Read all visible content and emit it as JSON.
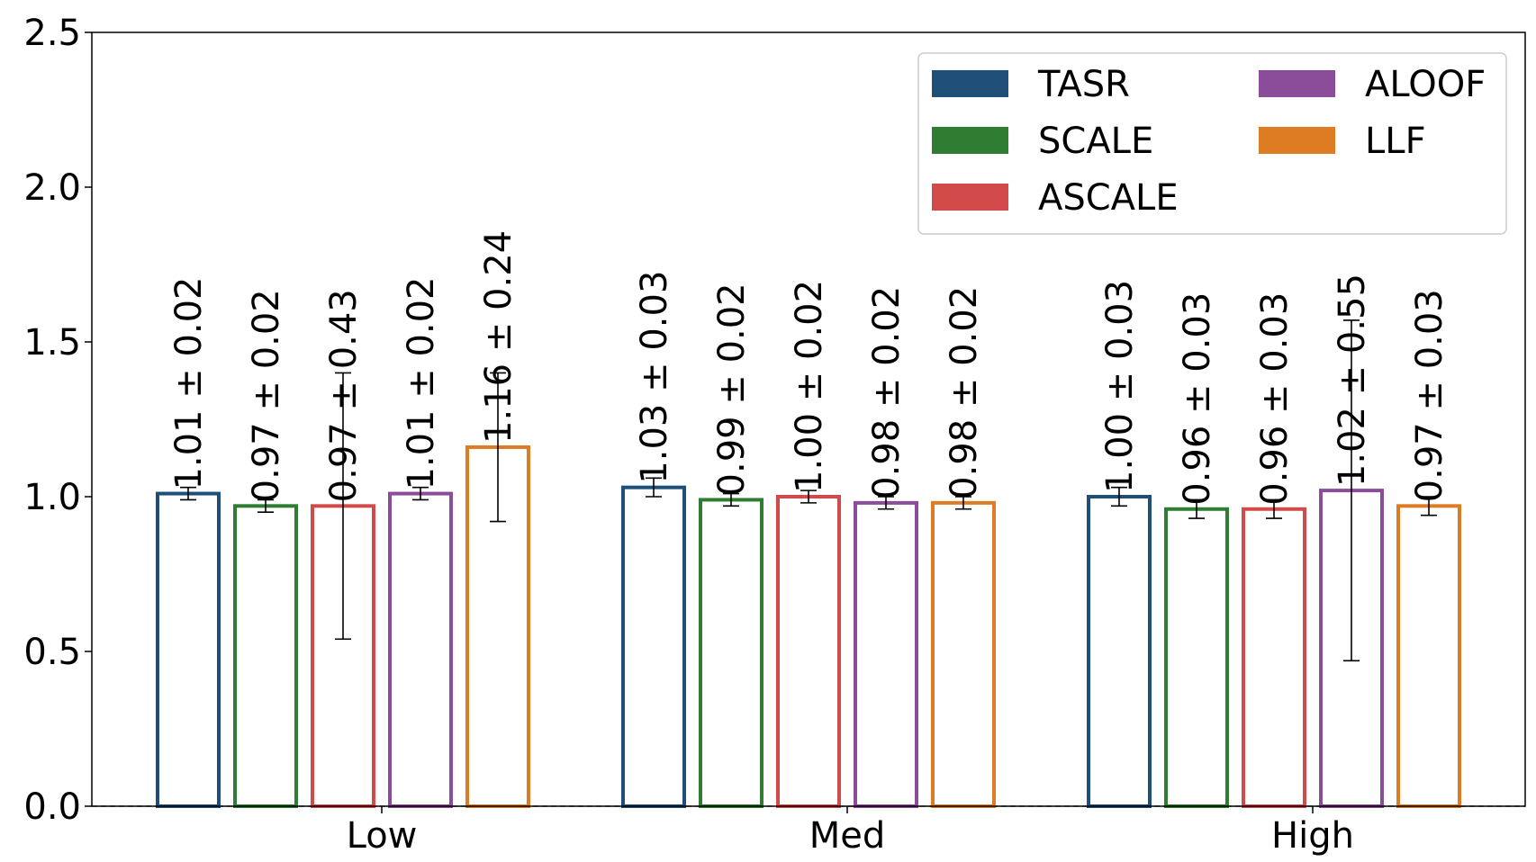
{
  "chart_data": {
    "type": "bar",
    "categories": [
      "Low",
      "Med",
      "High"
    ],
    "ylim": [
      0,
      2.5
    ],
    "yticks": [
      "0.0",
      "0.5",
      "1.0",
      "1.5",
      "2.0",
      "2.5"
    ],
    "xlabel": "",
    "ylabel": "",
    "grid": false,
    "legend_position": "top-right",
    "reference_line": 0,
    "series": [
      {
        "name": "TASR",
        "color": "#1f4e79",
        "values": [
          1.01,
          1.03,
          1.0
        ],
        "errors": [
          0.02,
          0.03,
          0.03
        ],
        "labels": [
          "1.01 ± 0.02",
          "1.03 ± 0.03",
          "1.00 ± 0.03"
        ]
      },
      {
        "name": "SCALE",
        "color": "#2e7d32",
        "values": [
          0.97,
          0.99,
          0.96
        ],
        "errors": [
          0.02,
          0.02,
          0.03
        ],
        "labels": [
          "0.97 ± 0.02",
          "0.99 ± 0.02",
          "0.96 ± 0.03"
        ]
      },
      {
        "name": "ASCALE",
        "color": "#d34a4a",
        "values": [
          0.97,
          1.0,
          0.96
        ],
        "errors": [
          0.43,
          0.02,
          0.03
        ],
        "labels": [
          "0.97 ± 0.43",
          "1.00 ± 0.02",
          "0.96 ± 0.03"
        ]
      },
      {
        "name": "ALOOF",
        "color": "#8b4c9a",
        "values": [
          1.01,
          0.98,
          1.02
        ],
        "errors": [
          0.02,
          0.02,
          0.55
        ],
        "labels": [
          "1.01 ± 0.02",
          "0.98 ± 0.02",
          "1.02 ± 0.55"
        ]
      },
      {
        "name": "LLF",
        "color": "#de7c24",
        "values": [
          1.16,
          0.98,
          0.97
        ],
        "errors": [
          0.24,
          0.02,
          0.03
        ],
        "labels": [
          "1.16 ± 0.24",
          "0.98 ± 0.02",
          "0.97 ± 0.03"
        ]
      }
    ]
  }
}
